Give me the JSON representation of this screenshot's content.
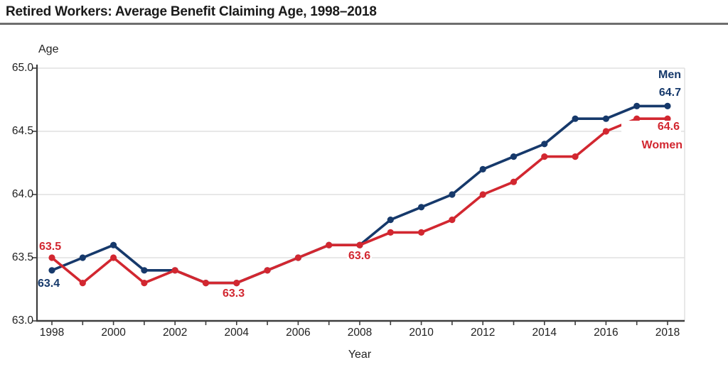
{
  "header": {
    "title": "Retired Workers: Average Benefit Claiming Age, 1998–2018"
  },
  "chart_data": {
    "type": "line",
    "title": "Retired Workers: Average Benefit Claiming Age, 1998–2018",
    "xlabel": "Year",
    "ylabel": "Age",
    "x": [
      1998,
      1999,
      2000,
      2001,
      2002,
      2003,
      2004,
      2005,
      2006,
      2007,
      2008,
      2009,
      2010,
      2011,
      2012,
      2013,
      2014,
      2015,
      2016,
      2017,
      2018
    ],
    "x_label_step": 2,
    "y_ticks": [
      "65.0",
      "64.5",
      "64.0",
      "63.5",
      "63.0"
    ],
    "ylim": [
      63.0,
      65.0
    ],
    "grid": "horizontal",
    "legend_position": "end-of-line",
    "series": [
      {
        "name": "Men",
        "color": "#16396b",
        "values": [
          63.4,
          63.5,
          63.6,
          63.4,
          63.4,
          63.3,
          63.3,
          63.4,
          63.5,
          63.6,
          63.6,
          63.8,
          63.9,
          64.0,
          64.2,
          64.3,
          64.4,
          64.6,
          64.6,
          64.7,
          64.7
        ]
      },
      {
        "name": "Women",
        "color": "#d22730",
        "values": [
          63.5,
          63.3,
          63.5,
          63.3,
          63.4,
          63.3,
          63.3,
          63.4,
          63.5,
          63.6,
          63.6,
          63.7,
          63.7,
          63.8,
          64.0,
          64.1,
          64.3,
          64.3,
          64.5,
          64.6,
          64.6
        ]
      }
    ],
    "annotations": {
      "women_1998": "63.5",
      "men_1998": "63.4",
      "women_2004": "63.3",
      "women_2008": "63.6",
      "men_series_label": "Men",
      "men_2018": "64.7",
      "women_2018": "64.6",
      "women_series_label": "Women"
    },
    "colors": {
      "men": "#16396b",
      "women": "#d22730",
      "grid": "#e0e0e0",
      "axis": "#3d3d3d"
    }
  }
}
